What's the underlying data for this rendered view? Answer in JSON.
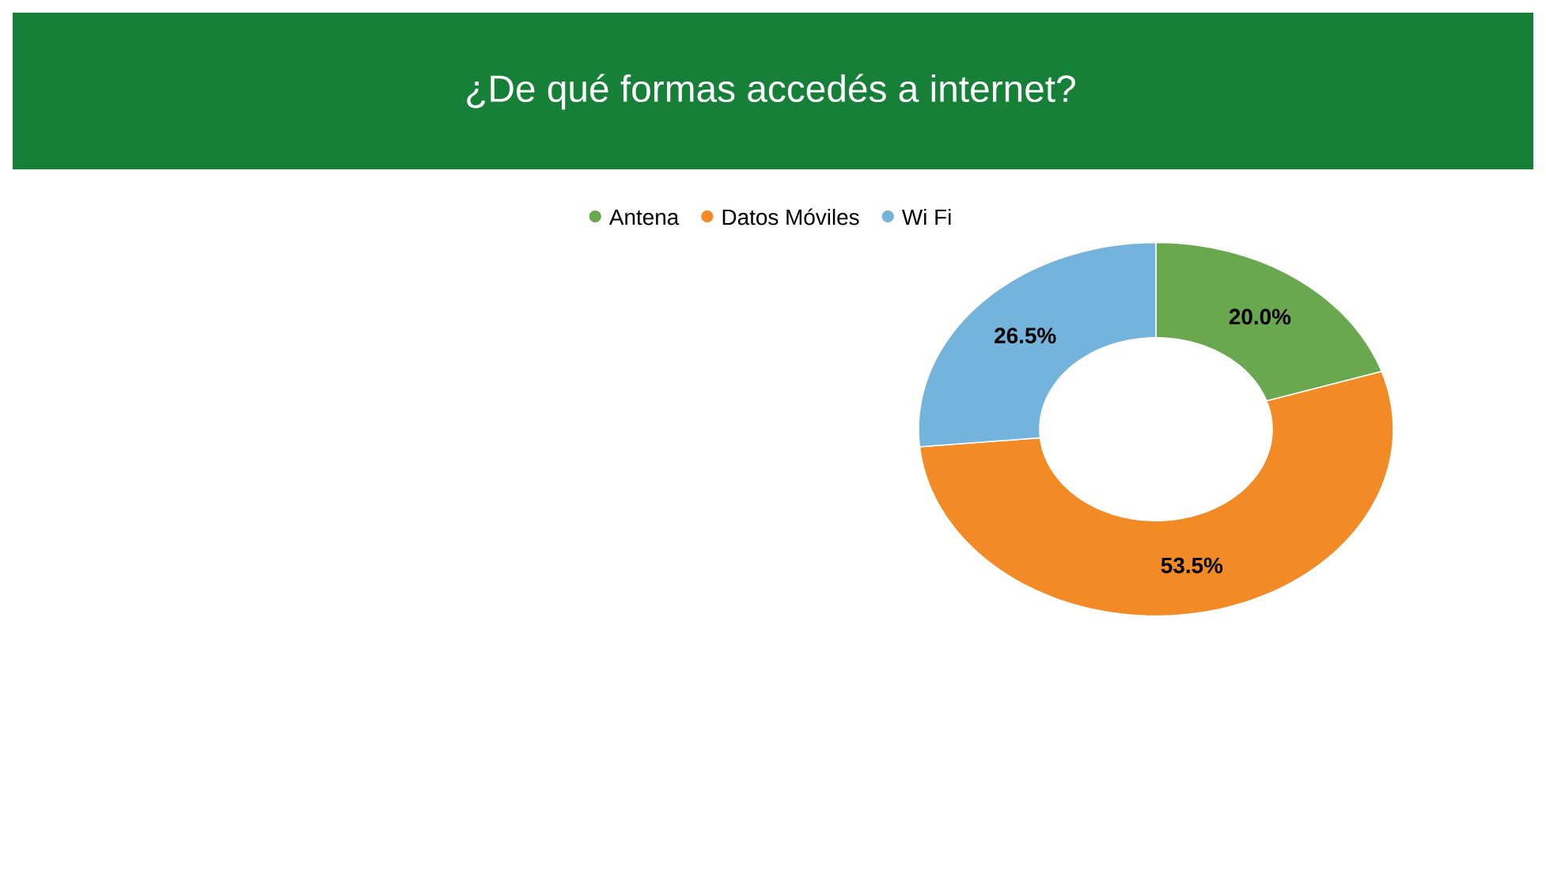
{
  "chart_data": {
    "type": "donut",
    "title": "¿De qué formas accedés a internet?",
    "categories": [
      "Antena",
      "Datos Móviles",
      "Wi Fi"
    ],
    "values": [
      20.0,
      53.5,
      26.5
    ],
    "value_labels": [
      "20.0%",
      "53.5%",
      "26.5%"
    ],
    "colors": [
      "#6aa84f",
      "#f28a26",
      "#74b3dc"
    ],
    "legend": "top"
  }
}
